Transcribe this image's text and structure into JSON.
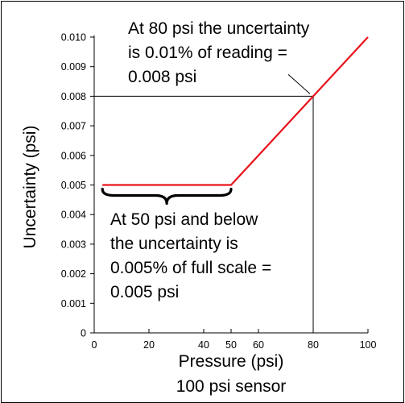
{
  "chart_data": {
    "type": "line",
    "xlabel": "Pressure (psi)",
    "ylabel": "Uncertainty (psi)",
    "caption": "100 psi sensor",
    "xlim": [
      0,
      100
    ],
    "ylim": [
      0,
      0.01
    ],
    "x_ticks": [
      {
        "value": 0,
        "label": "0"
      },
      {
        "value": 20,
        "label": "20"
      },
      {
        "value": 40,
        "label": "40"
      },
      {
        "value": 50,
        "label": "50"
      },
      {
        "value": 60,
        "label": "60"
      },
      {
        "value": 80,
        "label": "80"
      },
      {
        "value": 100,
        "label": "100"
      }
    ],
    "y_ticks": [
      {
        "value": 0,
        "label": "0"
      },
      {
        "value": 0.001,
        "label": "0.001"
      },
      {
        "value": 0.002,
        "label": "0.002"
      },
      {
        "value": 0.003,
        "label": "0.003"
      },
      {
        "value": 0.004,
        "label": "0.004"
      },
      {
        "value": 0.005,
        "label": "0.005"
      },
      {
        "value": 0.006,
        "label": "0.006"
      },
      {
        "value": 0.007,
        "label": "0.007"
      },
      {
        "value": 0.008,
        "label": "0.008"
      },
      {
        "value": 0.009,
        "label": "0.009"
      },
      {
        "value": 0.01,
        "label": "0.010"
      }
    ],
    "series": [
      {
        "color": "#e8141c",
        "points": [
          [
            3,
            0.005
          ],
          [
            50,
            0.005
          ],
          [
            100,
            0.01
          ]
        ]
      }
    ],
    "reference_point": {
      "x": 80,
      "y": 0.008,
      "color": "#000000"
    },
    "annotations": [
      {
        "id": "top",
        "lines": [
          "At 80 psi the uncertainty",
          "is 0.01% of reading =",
          "0.008 psi"
        ],
        "points_to": {
          "x": 80,
          "y": 0.008
        }
      },
      {
        "id": "bottom",
        "lines": [
          "At 50 psi and below",
          "the uncertainty is",
          "0.005% of full scale =",
          "0.005 psi"
        ],
        "brace_range": [
          3,
          50
        ],
        "brace_y": 0.005
      }
    ],
    "grid": false,
    "legend": "none"
  }
}
